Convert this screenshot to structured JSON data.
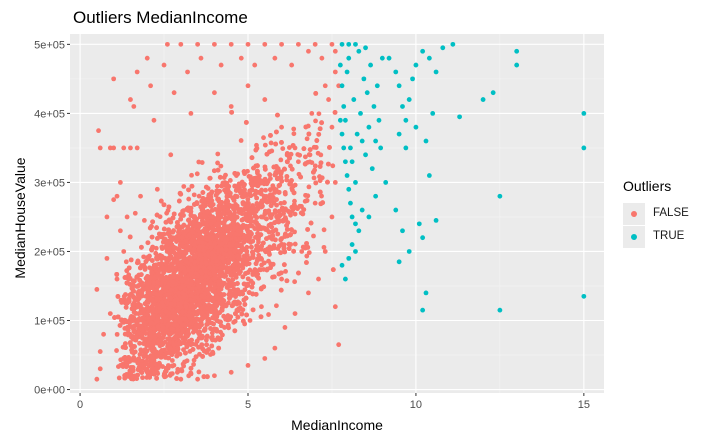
{
  "chart_data": {
    "type": "scatter",
    "title": "Outliers MedianIncome",
    "xlabel": "MedianIncome",
    "ylabel": "MedianHouseValue",
    "xlim": [
      -0.3,
      15.6
    ],
    "ylim": [
      -5000,
      515000
    ],
    "x_ticks": [
      0,
      5,
      10,
      15
    ],
    "x_tick_labels": [
      "0",
      "5",
      "10",
      "15"
    ],
    "y_ticks": [
      0,
      100000,
      200000,
      300000,
      400000,
      500000
    ],
    "y_tick_labels": [
      "0e+00",
      "1e+05",
      "2e+05",
      "3e+05",
      "4e+05",
      "5e+05"
    ],
    "grid": true,
    "legend_position": "right",
    "legend": {
      "title": "Outliers",
      "entries": [
        {
          "label": "FALSE",
          "color": "#F8766D"
        },
        {
          "label": "TRUE",
          "color": "#00BFC4"
        }
      ]
    },
    "series": [
      {
        "name": "FALSE",
        "color": "#F8766D",
        "points": [
          [
            0.5,
            15000
          ],
          [
            0.6,
            30000
          ],
          [
            0.6,
            55000
          ],
          [
            0.5,
            145000
          ],
          [
            0.55,
            375000
          ],
          [
            0.6,
            350000
          ],
          [
            0.9,
            350000
          ],
          [
            1.0,
            350000
          ],
          [
            1.3,
            350000
          ],
          [
            1.5,
            350000
          ],
          [
            1.7,
            350000
          ],
          [
            1.0,
            275000
          ],
          [
            1.1,
            280000
          ],
          [
            1.2,
            300000
          ],
          [
            1.5,
            420000
          ],
          [
            1.7,
            460000
          ],
          [
            2.0,
            480000
          ],
          [
            2.6,
            500000
          ],
          [
            3.0,
            500000
          ],
          [
            3.5,
            500000
          ],
          [
            4.0,
            500000
          ],
          [
            4.5,
            500000
          ],
          [
            5.0,
            500000
          ],
          [
            5.5,
            500000
          ],
          [
            6.0,
            500000
          ],
          [
            6.5,
            500000
          ],
          [
            7.0,
            500000
          ],
          [
            7.5,
            500000
          ],
          [
            1.0,
            450000
          ],
          [
            1.6,
            410000
          ],
          [
            2.1,
            440000
          ],
          [
            2.5,
            470000
          ],
          [
            1.2,
            230000
          ],
          [
            1.3,
            200000
          ],
          [
            0.8,
            250000
          ],
          [
            0.9,
            110000
          ],
          [
            0.7,
            80000
          ],
          [
            0.8,
            190000
          ],
          [
            1.1,
            160000
          ],
          [
            2.2,
            390000
          ],
          [
            2.8,
            430000
          ],
          [
            3.2,
            460000
          ],
          [
            3.6,
            480000
          ],
          [
            4.2,
            470000
          ],
          [
            4.8,
            480000
          ],
          [
            5.2,
            470000
          ],
          [
            5.8,
            480000
          ],
          [
            6.3,
            470000
          ],
          [
            6.8,
            490000
          ],
          [
            7.2,
            480000
          ],
          [
            7.6,
            490000
          ],
          [
            7.4,
            420000
          ],
          [
            7.5,
            380000
          ],
          [
            7.6,
            300000
          ],
          [
            7.5,
            250000
          ],
          [
            7.3,
            200000
          ],
          [
            7.1,
            160000
          ],
          [
            6.8,
            140000
          ],
          [
            6.4,
            110000
          ],
          [
            6.1,
            90000
          ],
          [
            5.8,
            60000
          ],
          [
            5.5,
            45000
          ],
          [
            5.0,
            35000
          ],
          [
            4.5,
            25000
          ],
          [
            4.0,
            20000
          ],
          [
            3.5,
            15000
          ],
          [
            3.0,
            15000
          ],
          [
            2.5,
            20000
          ],
          [
            2.0,
            25000
          ],
          [
            1.5,
            25000
          ],
          [
            1.2,
            35000
          ],
          [
            7.6,
            460000
          ],
          [
            7.7,
            440000
          ],
          [
            7.6,
            120000
          ],
          [
            7.7,
            65000
          ],
          [
            3.3,
            130000
          ],
          [
            3.8,
            100000
          ],
          [
            4.3,
            90000
          ],
          [
            4.9,
            95000
          ],
          [
            5.4,
            120000
          ],
          [
            6.0,
            160000
          ],
          [
            6.6,
            200000
          ],
          [
            7.0,
            270000
          ],
          [
            6.5,
            330000
          ],
          [
            6.0,
            380000
          ],
          [
            5.5,
            420000
          ],
          [
            5.0,
            440000
          ],
          [
            4.5,
            410000
          ],
          [
            4.0,
            430000
          ],
          [
            3.3,
            400000
          ],
          [
            2.7,
            340000
          ],
          [
            2.3,
            290000
          ],
          [
            1.8,
            280000
          ],
          [
            1.4,
            250000
          ],
          [
            1.9,
            180000
          ],
          [
            2.4,
            160000
          ],
          [
            2.9,
            190000
          ],
          [
            3.4,
            210000
          ],
          [
            3.9,
            240000
          ],
          [
            4.4,
            260000
          ],
          [
            4.9,
            280000
          ],
          [
            5.4,
            300000
          ],
          [
            5.9,
            320000
          ],
          [
            6.4,
            350000
          ],
          [
            6.9,
            400000
          ],
          [
            7.3,
            440000
          ]
        ]
      },
      {
        "name": "TRUE",
        "color": "#00BFC4",
        "points": [
          [
            7.75,
            470000
          ],
          [
            7.8,
            440000
          ],
          [
            7.85,
            410000
          ],
          [
            7.9,
            390000
          ],
          [
            7.95,
            460000
          ],
          [
            8.0,
            480000
          ],
          [
            8.05,
            350000
          ],
          [
            8.1,
            330000
          ],
          [
            8.15,
            420000
          ],
          [
            8.2,
            300000
          ],
          [
            8.25,
            370000
          ],
          [
            8.3,
            490000
          ],
          [
            8.35,
            400000
          ],
          [
            8.4,
            360000
          ],
          [
            8.45,
            450000
          ],
          [
            8.5,
            340000
          ],
          [
            8.55,
            430000
          ],
          [
            8.6,
            380000
          ],
          [
            8.65,
            470000
          ],
          [
            8.7,
            320000
          ],
          [
            8.75,
            410000
          ],
          [
            8.8,
            360000
          ],
          [
            8.85,
            440000
          ],
          [
            8.9,
            390000
          ],
          [
            8.95,
            350000
          ],
          [
            9.0,
            480000
          ],
          [
            7.75,
            390000
          ],
          [
            7.8,
            370000
          ],
          [
            7.85,
            350000
          ],
          [
            7.9,
            330000
          ],
          [
            7.95,
            310000
          ],
          [
            8.0,
            290000
          ],
          [
            8.05,
            270000
          ],
          [
            8.1,
            250000
          ],
          [
            8.2,
            240000
          ],
          [
            8.3,
            230000
          ],
          [
            7.8,
            180000
          ],
          [
            7.9,
            160000
          ],
          [
            8.0,
            190000
          ],
          [
            8.1,
            210000
          ],
          [
            8.2,
            200000
          ],
          [
            8.4,
            260000
          ],
          [
            8.6,
            250000
          ],
          [
            8.8,
            280000
          ],
          [
            9.1,
            300000
          ],
          [
            7.8,
            500000
          ],
          [
            8.0,
            500000
          ],
          [
            8.2,
            500000
          ],
          [
            8.5,
            495000
          ],
          [
            9.2,
            480000
          ],
          [
            9.4,
            460000
          ],
          [
            9.5,
            440000
          ],
          [
            9.6,
            410000
          ],
          [
            9.7,
            390000
          ],
          [
            9.8,
            420000
          ],
          [
            9.9,
            450000
          ],
          [
            10.0,
            470000
          ],
          [
            10.2,
            490000
          ],
          [
            10.4,
            480000
          ],
          [
            10.6,
            460000
          ],
          [
            10.8,
            495000
          ],
          [
            9.5,
            370000
          ],
          [
            9.7,
            350000
          ],
          [
            10.0,
            380000
          ],
          [
            10.3,
            360000
          ],
          [
            10.5,
            400000
          ],
          [
            9.4,
            260000
          ],
          [
            9.6,
            230000
          ],
          [
            9.5,
            185000
          ],
          [
            9.8,
            200000
          ],
          [
            10.1,
            240000
          ],
          [
            10.4,
            310000
          ],
          [
            10.6,
            245000
          ],
          [
            10.2,
            220000
          ],
          [
            10.3,
            140000
          ],
          [
            10.2,
            115000
          ],
          [
            11.1,
            500000
          ],
          [
            11.3,
            395000
          ],
          [
            12.0,
            420000
          ],
          [
            12.3,
            430000
          ],
          [
            12.5,
            280000
          ],
          [
            12.5,
            115000
          ],
          [
            13.0,
            490000
          ],
          [
            13.0,
            470000
          ],
          [
            15.0,
            400000
          ],
          [
            15.0,
            350000
          ],
          [
            15.0,
            135000
          ]
        ]
      }
    ]
  }
}
